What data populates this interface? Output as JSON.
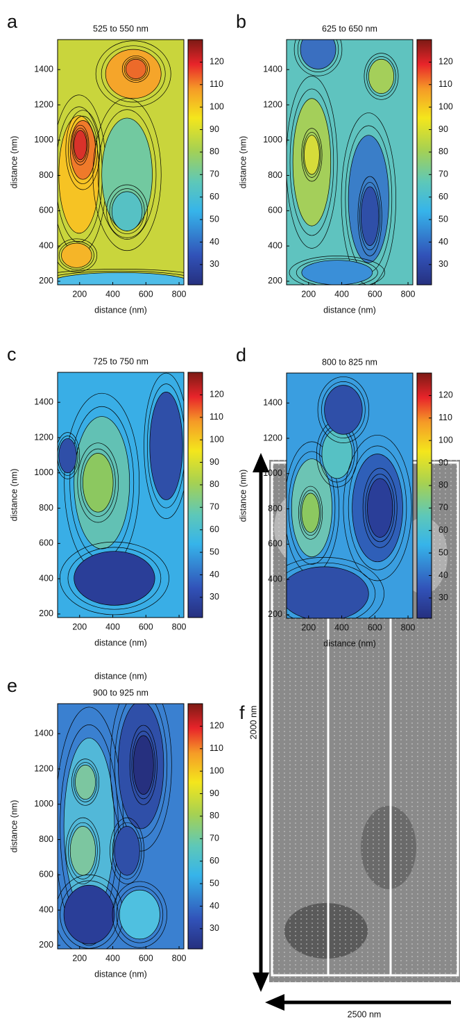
{
  "chart_data": [
    {
      "type": "contour",
      "panel": "a",
      "title": "525 to 550 nm",
      "xlabel": "distance (nm)",
      "ylabel": "distance (nm)",
      "xlim": [
        67,
        829
      ],
      "ylim": [
        180,
        1570
      ],
      "xticks": [
        200,
        400,
        600,
        800
      ],
      "yticks": [
        200,
        400,
        600,
        800,
        1000,
        1200,
        1400
      ],
      "clim": [
        21,
        130
      ],
      "cticks": [
        30,
        40,
        50,
        60,
        70,
        80,
        90,
        100,
        110,
        120
      ]
    },
    {
      "type": "contour",
      "panel": "b",
      "title": "625 to 650 nm",
      "xlabel": "distance (nm)",
      "ylabel": "distance (nm)",
      "xlim": [
        67,
        829
      ],
      "ylim": [
        180,
        1570
      ],
      "xticks": [
        200,
        400,
        600,
        800
      ],
      "yticks": [
        200,
        400,
        600,
        800,
        1000,
        1200,
        1400
      ],
      "clim": [
        21,
        130
      ],
      "cticks": [
        30,
        40,
        50,
        60,
        70,
        80,
        90,
        100,
        110,
        120
      ]
    },
    {
      "type": "contour",
      "panel": "c",
      "title": "725 to 750 nm",
      "xlabel": "distance (nm)",
      "ylabel": "distance (nm)",
      "xlim": [
        67,
        829
      ],
      "ylim": [
        180,
        1570
      ],
      "xticks": [
        200,
        400,
        600,
        800
      ],
      "yticks": [
        200,
        400,
        600,
        800,
        1000,
        1200,
        1400
      ],
      "clim": [
        21,
        130
      ],
      "cticks": [
        30,
        40,
        50,
        60,
        70,
        80,
        90,
        100,
        110,
        120
      ],
      "annotation": "distance (nm)"
    },
    {
      "type": "contour",
      "panel": "d",
      "title": "800 to 825 nm",
      "xlabel": "distance (nm)",
      "ylabel": "distance (nm)",
      "xlim": [
        67,
        829
      ],
      "ylim": [
        180,
        1570
      ],
      "xticks": [
        200,
        400,
        600,
        800
      ],
      "yticks": [
        200,
        400,
        600,
        800,
        1000,
        1200,
        1400
      ],
      "clim": [
        21,
        130
      ],
      "cticks": [
        30,
        40,
        50,
        60,
        70,
        80,
        90,
        100,
        110,
        120
      ]
    },
    {
      "type": "contour",
      "panel": "e",
      "title": "900 to 925 nm",
      "xlabel": "distance (nm)",
      "ylabel": "distance (nm)",
      "xlim": [
        67,
        829
      ],
      "ylim": [
        180,
        1570
      ],
      "xticks": [
        200,
        400,
        600,
        800
      ],
      "yticks": [
        200,
        400,
        600,
        800,
        1000,
        1200,
        1400
      ],
      "clim": [
        21,
        130
      ],
      "cticks": [
        30,
        40,
        50,
        60,
        70,
        80,
        90,
        100,
        110,
        120
      ]
    }
  ],
  "image_panel": {
    "panel": "f",
    "height_label": "2000 nm",
    "width_label": "2500 nm"
  }
}
